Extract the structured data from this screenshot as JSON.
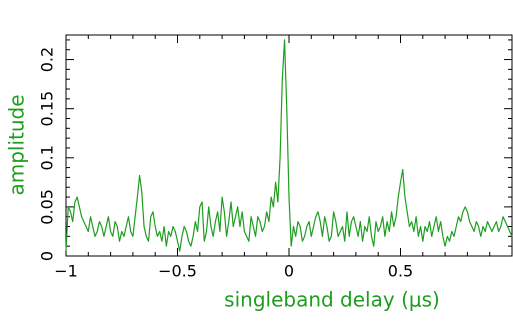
{
  "chart_data": {
    "type": "line",
    "xlabel": "singleband delay (μs)",
    "ylabel": "amplitude",
    "color": "#1e9e1e",
    "xlim": [
      -1,
      1
    ],
    "ylim": [
      0,
      0.225
    ],
    "xticks": [
      {
        "value": -1,
        "label": "−1"
      },
      {
        "value": -0.5,
        "label": "−0.5"
      },
      0,
      0.5
    ],
    "yticks": [
      0,
      0.05,
      0.1,
      0.15,
      0.2
    ],
    "xminorticks": [
      -0.9,
      -0.8,
      -0.7,
      -0.6,
      -0.4,
      -0.3,
      -0.2,
      -0.1,
      0.1,
      0.2,
      0.3,
      0.4,
      0.6,
      0.7,
      0.8,
      0.9
    ],
    "yminorticks": [
      0.01,
      0.02,
      0.03,
      0.04,
      0.06,
      0.07,
      0.08,
      0.09,
      0.11,
      0.12,
      0.13,
      0.14,
      0.16,
      0.17,
      0.18,
      0.19,
      0.21,
      0.22
    ],
    "x": [
      -1.0,
      -0.99,
      -0.98,
      -0.97,
      -0.96,
      -0.95,
      -0.94,
      -0.93,
      -0.92,
      -0.91,
      -0.9,
      -0.89,
      -0.88,
      -0.87,
      -0.86,
      -0.85,
      -0.84,
      -0.83,
      -0.82,
      -0.81,
      -0.8,
      -0.79,
      -0.78,
      -0.77,
      -0.76,
      -0.75,
      -0.74,
      -0.73,
      -0.72,
      -0.71,
      -0.7,
      -0.69,
      -0.68,
      -0.67,
      -0.66,
      -0.65,
      -0.64,
      -0.63,
      -0.62,
      -0.61,
      -0.6,
      -0.59,
      -0.58,
      -0.57,
      -0.56,
      -0.55,
      -0.54,
      -0.53,
      -0.52,
      -0.51,
      -0.5,
      -0.49,
      -0.48,
      -0.47,
      -0.46,
      -0.45,
      -0.44,
      -0.43,
      -0.42,
      -0.41,
      -0.4,
      -0.39,
      -0.38,
      -0.37,
      -0.36,
      -0.35,
      -0.34,
      -0.33,
      -0.32,
      -0.31,
      -0.3,
      -0.29,
      -0.28,
      -0.27,
      -0.26,
      -0.25,
      -0.24,
      -0.23,
      -0.22,
      -0.21,
      -0.2,
      -0.19,
      -0.18,
      -0.17,
      -0.16,
      -0.15,
      -0.14,
      -0.13,
      -0.12,
      -0.11,
      -0.1,
      -0.09,
      -0.08,
      -0.07,
      -0.06,
      -0.05,
      -0.04,
      -0.03,
      -0.02,
      -0.01,
      0.0,
      0.01,
      0.02,
      0.03,
      0.04,
      0.05,
      0.06,
      0.07,
      0.08,
      0.09,
      0.1,
      0.11,
      0.12,
      0.13,
      0.14,
      0.15,
      0.16,
      0.17,
      0.18,
      0.19,
      0.2,
      0.21,
      0.22,
      0.23,
      0.24,
      0.25,
      0.26,
      0.27,
      0.28,
      0.29,
      0.3,
      0.31,
      0.32,
      0.33,
      0.34,
      0.35,
      0.36,
      0.37,
      0.38,
      0.39,
      0.4,
      0.41,
      0.42,
      0.43,
      0.44,
      0.45,
      0.46,
      0.47,
      0.48,
      0.49,
      0.5,
      0.51,
      0.52,
      0.53,
      0.54,
      0.55,
      0.56,
      0.57,
      0.58,
      0.59,
      0.6,
      0.61,
      0.62,
      0.63,
      0.64,
      0.65,
      0.66,
      0.67,
      0.68,
      0.69,
      0.7,
      0.71,
      0.72,
      0.73,
      0.74,
      0.75,
      0.76,
      0.77,
      0.78,
      0.79,
      0.8,
      0.81,
      0.82,
      0.83,
      0.84,
      0.85,
      0.86,
      0.87,
      0.88,
      0.89,
      0.9,
      0.91,
      0.92,
      0.93,
      0.94,
      0.95,
      0.96,
      0.97,
      0.98,
      0.99,
      1.0
    ],
    "values": [
      0.005,
      0.05,
      0.045,
      0.035,
      0.055,
      0.06,
      0.05,
      0.04,
      0.035,
      0.03,
      0.025,
      0.04,
      0.03,
      0.02,
      0.025,
      0.035,
      0.03,
      0.02,
      0.03,
      0.04,
      0.025,
      0.02,
      0.035,
      0.03,
      0.015,
      0.025,
      0.02,
      0.03,
      0.04,
      0.025,
      0.02,
      0.04,
      0.06,
      0.082,
      0.065,
      0.03,
      0.02,
      0.015,
      0.04,
      0.045,
      0.03,
      0.02,
      0.025,
      0.015,
      0.03,
      0.01,
      0.025,
      0.02,
      0.03,
      0.025,
      0.015,
      0.005,
      0.02,
      0.03,
      0.025,
      0.015,
      0.01,
      0.02,
      0.035,
      0.025,
      0.05,
      0.055,
      0.015,
      0.025,
      0.05,
      0.03,
      0.02,
      0.035,
      0.045,
      0.025,
      0.06,
      0.045,
      0.02,
      0.035,
      0.055,
      0.03,
      0.04,
      0.05,
      0.03,
      0.045,
      0.025,
      0.02,
      0.015,
      0.04,
      0.03,
      0.02,
      0.04,
      0.035,
      0.025,
      0.03,
      0.045,
      0.035,
      0.06,
      0.05,
      0.075,
      0.055,
      0.1,
      0.18,
      0.22,
      0.15,
      0.06,
      0.01,
      0.03,
      0.02,
      0.035,
      0.03,
      0.015,
      0.02,
      0.03,
      0.035,
      0.02,
      0.03,
      0.04,
      0.045,
      0.035,
      0.02,
      0.04,
      0.03,
      0.015,
      0.02,
      0.045,
      0.035,
      0.02,
      0.025,
      0.03,
      0.015,
      0.045,
      0.02,
      0.035,
      0.04,
      0.03,
      0.02,
      0.035,
      0.015,
      0.03,
      0.025,
      0.04,
      0.02,
      0.01,
      0.035,
      0.025,
      0.03,
      0.04,
      0.02,
      0.035,
      0.025,
      0.045,
      0.03,
      0.04,
      0.06,
      0.075,
      0.088,
      0.06,
      0.045,
      0.03,
      0.035,
      0.025,
      0.04,
      0.02,
      0.03,
      0.015,
      0.03,
      0.025,
      0.035,
      0.02,
      0.03,
      0.04,
      0.025,
      0.035,
      0.02,
      0.01,
      0.02,
      0.015,
      0.025,
      0.02,
      0.03,
      0.04,
      0.035,
      0.045,
      0.05,
      0.045,
      0.035,
      0.03,
      0.025,
      0.035,
      0.03,
      0.02,
      0.03,
      0.025,
      0.035,
      0.03,
      0.025,
      0.03,
      0.035,
      0.025,
      0.03,
      0.04,
      0.035,
      0.03,
      0.025,
      0.02
    ]
  }
}
